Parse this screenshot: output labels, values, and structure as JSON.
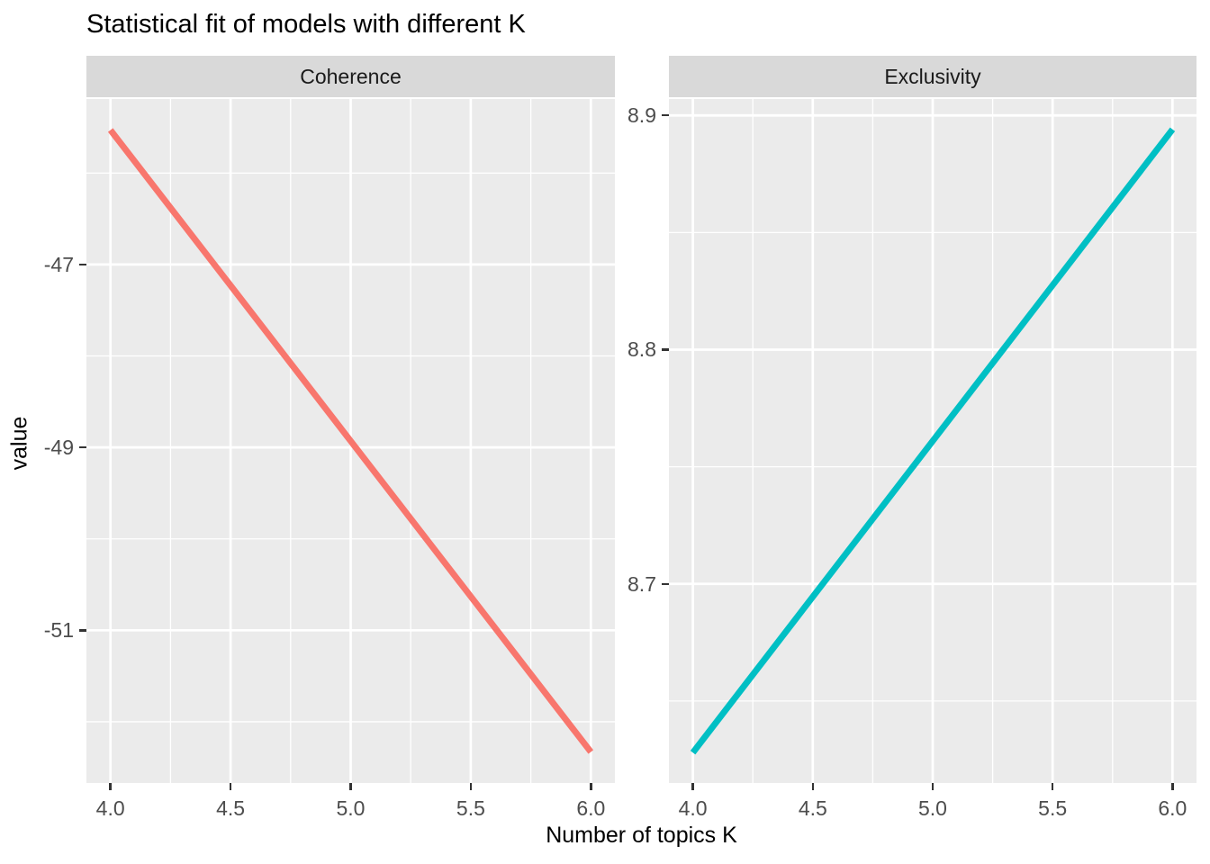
{
  "theme": {
    "panel_bg": "#EBEBEB",
    "strip_bg": "#D9D9D9",
    "grid_color": "#FFFFFF",
    "axis_text_color": "#4D4D4D",
    "strip_text_color": "#1A1A1A",
    "title_color": "#000000",
    "tick_mark_color": "#333333",
    "coherence_line_color": "#F8766D",
    "exclusivity_line_color": "#00BFC4"
  },
  "chart_data": {
    "type": "line",
    "title": "Statistical fit of models with different K",
    "xlabel": "Number of topics K",
    "ylabel": "value",
    "legend": "none",
    "grid": true,
    "x": [
      4,
      5,
      6
    ],
    "xlim": [
      3.9,
      6.1
    ],
    "x_ticks": [
      4.0,
      4.5,
      5.0,
      5.5,
      6.0
    ],
    "x_tick_labels": [
      "4.0",
      "4.5",
      "5.0",
      "5.5",
      "6.0"
    ],
    "x_minor_breaks": [
      4.25,
      4.75,
      5.25,
      5.75
    ],
    "facets": [
      {
        "label": "Coherence",
        "series_color": "#F8766D",
        "values": [
          -45.53,
          -48.93,
          -52.33
        ],
        "ylim": [
          -52.67,
          -45.19
        ],
        "y_ticks": [
          -47,
          -49,
          -51
        ],
        "y_tick_labels": [
          "-47",
          "-49",
          "-51"
        ],
        "y_minor_breaks": [
          -46,
          -48,
          -50,
          -52
        ]
      },
      {
        "label": "Exclusivity",
        "series_color": "#00BFC4",
        "values": [
          8.628,
          8.761,
          8.894
        ],
        "ylim": [
          8.615,
          8.907
        ],
        "y_ticks": [
          8.9,
          8.8,
          8.7
        ],
        "y_tick_labels": [
          "8.9",
          "8.8",
          "8.7"
        ],
        "y_minor_breaks": [
          8.85,
          8.75,
          8.65
        ]
      }
    ]
  }
}
